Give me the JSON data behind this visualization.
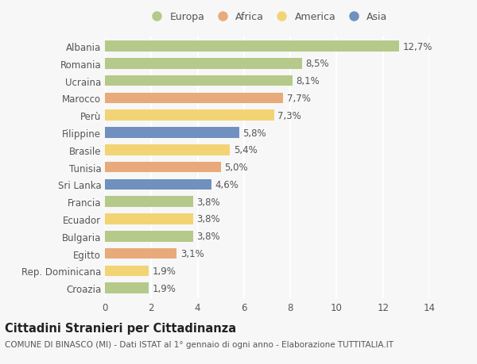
{
  "categories": [
    "Albania",
    "Romania",
    "Ucraina",
    "Marocco",
    "Perù",
    "Filippine",
    "Brasile",
    "Tunisia",
    "Sri Lanka",
    "Francia",
    "Ecuador",
    "Bulgaria",
    "Egitto",
    "Rep. Dominicana",
    "Croazia"
  ],
  "values": [
    12.7,
    8.5,
    8.1,
    7.7,
    7.3,
    5.8,
    5.4,
    5.0,
    4.6,
    3.8,
    3.8,
    3.8,
    3.1,
    1.9,
    1.9
  ],
  "labels": [
    "12,7%",
    "8,5%",
    "8,1%",
    "7,7%",
    "7,3%",
    "5,8%",
    "5,4%",
    "5,0%",
    "4,6%",
    "3,8%",
    "3,8%",
    "3,8%",
    "3,1%",
    "1,9%",
    "1,9%"
  ],
  "colors": [
    "#b5c98a",
    "#b5c98a",
    "#b5c98a",
    "#e8aa7a",
    "#f2d474",
    "#7090c0",
    "#f2d474",
    "#e8aa7a",
    "#7090c0",
    "#b5c98a",
    "#f2d474",
    "#b5c98a",
    "#e8aa7a",
    "#f2d474",
    "#b5c98a"
  ],
  "legend_labels": [
    "Europa",
    "Africa",
    "America",
    "Asia"
  ],
  "legend_colors": [
    "#b5c98a",
    "#e8aa7a",
    "#f2d474",
    "#7090c0"
  ],
  "title": "Cittadini Stranieri per Cittadinanza",
  "subtitle": "COMUNE DI BINASCO (MI) - Dati ISTAT al 1° gennaio di ogni anno - Elaborazione TUTTITALIA.IT",
  "xlim": [
    0,
    14
  ],
  "xticks": [
    0,
    2,
    4,
    6,
    8,
    10,
    12,
    14
  ],
  "bg_color": "#f7f7f7",
  "grid_color": "#ffffff",
  "text_color": "#555555",
  "label_fontsize": 8.5,
  "tick_fontsize": 8.5,
  "title_fontsize": 10.5,
  "subtitle_fontsize": 7.5
}
